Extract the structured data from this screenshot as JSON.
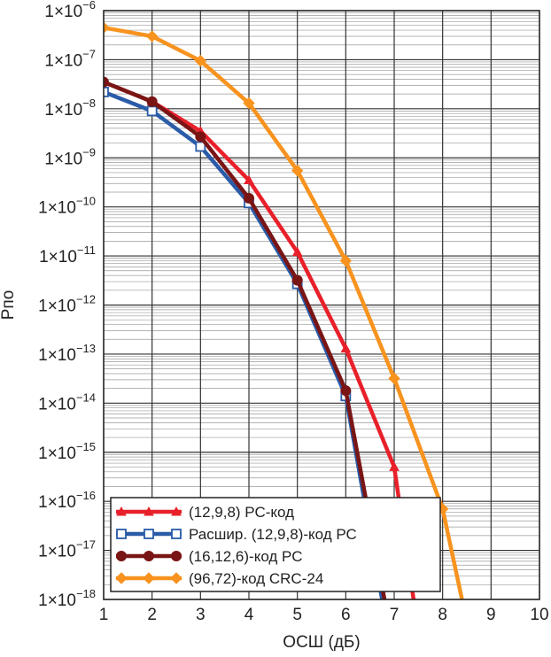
{
  "chart_data": {
    "type": "line",
    "xlabel": "ОСШ (дБ)",
    "ylabel": "Рпо",
    "xlim": [
      1,
      10
    ],
    "ylim_exponents": [
      -18,
      -6
    ],
    "y_scale": "log",
    "grid": true,
    "legend_position": "bottom-left",
    "x_ticks": [
      "1",
      "2",
      "3",
      "4",
      "5",
      "6",
      "7",
      "8",
      "9",
      "10"
    ],
    "y_ticks": [
      {
        "base": "1×10",
        "exp": "−6"
      },
      {
        "base": "1×10",
        "exp": "−7"
      },
      {
        "base": "1×10",
        "exp": "−8"
      },
      {
        "base": "1×10",
        "exp": "−9"
      },
      {
        "base": "1×10",
        "exp": "−10"
      },
      {
        "base": "1×10",
        "exp": "−11"
      },
      {
        "base": "1×10",
        "exp": "−12"
      },
      {
        "base": "1×10",
        "exp": "−13"
      },
      {
        "base": "1×10",
        "exp": "−14"
      },
      {
        "base": "1×10",
        "exp": "−15"
      },
      {
        "base": "1×10",
        "exp": "−16"
      },
      {
        "base": "1×10",
        "exp": "−17"
      },
      {
        "base": "1×10",
        "exp": "−18"
      }
    ],
    "series": [
      {
        "name": "(12,9,8) РС-код",
        "color": "#e8202a",
        "marker": "triangle",
        "x": [
          1,
          2,
          3,
          4,
          5,
          6,
          7,
          7.4
        ],
        "y": [
          3.5e-08,
          1.4e-08,
          3.5e-09,
          3.5e-10,
          1.2e-11,
          1.3e-13,
          5e-16,
          1e-18
        ]
      },
      {
        "name": "Расшир. (12,9,8)-код РС",
        "color": "#2a5ba8",
        "marker": "square",
        "x": [
          1,
          2,
          3,
          4,
          5,
          6,
          6.75
        ],
        "y": [
          2.2e-08,
          9e-09,
          1.7e-09,
          1.2e-10,
          2.7e-12,
          1.4e-14,
          1e-18
        ]
      },
      {
        "name": "(16,12,6)-код РС",
        "color": "#7a1515",
        "marker": "circle",
        "x": [
          1,
          2,
          3,
          4,
          5,
          6,
          6.8
        ],
        "y": [
          3.5e-08,
          1.4e-08,
          2.7e-09,
          1.5e-10,
          3.2e-12,
          1.8e-14,
          1e-18
        ]
      },
      {
        "name": "(96,72)-код CRC-24",
        "color": "#f7931e",
        "marker": "diamond",
        "x": [
          1,
          2,
          3,
          4,
          5,
          6,
          7,
          8,
          8.4
        ],
        "y": [
          4.5e-07,
          3e-07,
          9.5e-08,
          1.3e-08,
          5.5e-10,
          8e-12,
          3.2e-14,
          7e-17,
          1e-18
        ]
      }
    ]
  }
}
